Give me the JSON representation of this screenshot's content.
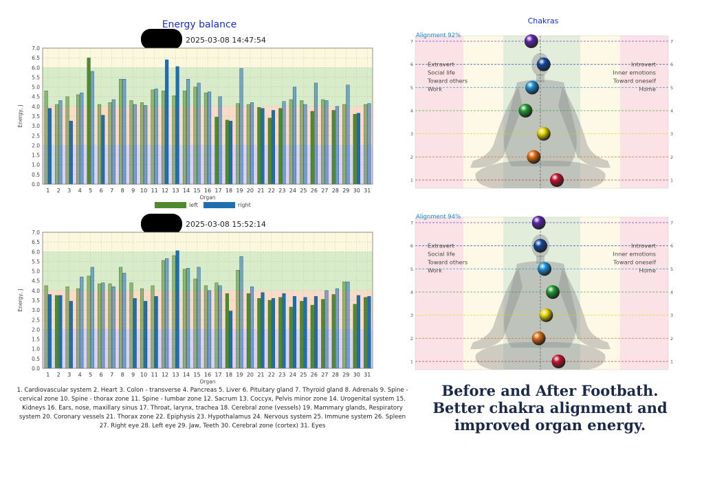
{
  "energy_title": "Energy balance",
  "timestamps": [
    "2025-03-08 14:47:54",
    "2025-03-08 15:52:14"
  ],
  "legend": {
    "left": "left",
    "right": "right",
    "left_color": "#4f8a2e",
    "right_color": "#1f6fb0"
  },
  "chakras_title": "Chakras",
  "chakra_labels_left": [
    "Extravert",
    "Social life",
    "Toward others",
    "Work"
  ],
  "chakra_labels_right": [
    "Introvert",
    "Inner emotions",
    "Toward oneself",
    "Home"
  ],
  "organ_list": "1. Cardiovascular system 2. Heart 3. Colon - transverse 4. Pancreas 5. Liver 6. Pituitary gland 7. Thyroid gland 8. Adrenals 9. Spine - cervical zone 10. Spine - thorax zone 11. Spine - lumbar zone 12. Sacrum 13. Coccyx, Pelvis minor zone 14. Urogenital system 15. Kidneys 16. Ears, nose, maxillary sinus 17. Throat, larynx, trachea 18. Cerebral zone (vessels) 19. Mammary glands, Respiratory system 20. Coronary vessels 21. Thorax zone 22. Epiphysis 23. Hypothalamus 24. Nervous system 25. Immune system 26. Spleen 27. Right eye 28. Left eye 29. Jaw, Teeth 30. Cerebral zone (cortex) 31. Eyes",
  "caption": [
    "Before and After Footbath.",
    "Better chakra alignment and",
    "improved organ energy."
  ],
  "chakra_colors": [
    "#c8102e",
    "#e06a10",
    "#e8d400",
    "#1e9a2e",
    "#1b8fd6",
    "#1046a0",
    "#5a23b0"
  ],
  "chart_data": [
    {
      "type": "bar",
      "timestamp": "2025-03-08 14:47:54",
      "xlabel": "Organ",
      "ylabel": "Energy, J",
      "ylim": [
        0,
        7
      ],
      "yticks": [
        "0.0",
        "0.5",
        "1.0",
        "1.5",
        "2.0",
        "2.5",
        "3.0",
        "3.5",
        "4.0",
        "4.5",
        "5.0",
        "5.5",
        "6.0",
        "6.5",
        "7.0"
      ],
      "categories": [
        "1",
        "2",
        "3",
        "4",
        "5",
        "6",
        "7",
        "8",
        "9",
        "10",
        "11",
        "12",
        "13",
        "14",
        "15",
        "16",
        "17",
        "18",
        "19",
        "20",
        "21",
        "22",
        "23",
        "24",
        "25",
        "26",
        "27",
        "28",
        "29",
        "30",
        "31"
      ],
      "series": [
        {
          "name": "left",
          "values": [
            4.8,
            4.1,
            4.5,
            4.6,
            6.5,
            4.1,
            4.2,
            5.4,
            4.3,
            4.2,
            4.85,
            4.8,
            4.55,
            4.8,
            5.0,
            4.7,
            3.45,
            3.3,
            4.15,
            4.1,
            3.95,
            3.4,
            3.9,
            4.35,
            4.3,
            3.75,
            4.35,
            3.8,
            4.1,
            3.6,
            4.1
          ]
        },
        {
          "name": "right",
          "values": [
            3.9,
            4.3,
            3.25,
            4.7,
            5.8,
            3.55,
            4.35,
            5.4,
            4.1,
            4.05,
            4.9,
            6.4,
            6.05,
            5.4,
            5.2,
            4.75,
            4.5,
            3.25,
            5.95,
            4.2,
            3.9,
            3.8,
            4.25,
            5.0,
            4.1,
            5.2,
            4.3,
            4.0,
            5.1,
            3.65,
            4.15
          ]
        }
      ]
    },
    {
      "type": "bar",
      "timestamp": "2025-03-08 15:52:14",
      "xlabel": "Organ",
      "ylabel": "Energy, J",
      "ylim": [
        0,
        7
      ],
      "yticks": [
        "0.0",
        "0.5",
        "1.0",
        "1.5",
        "2.0",
        "2.5",
        "3.0",
        "3.5",
        "4.0",
        "4.5",
        "5.0",
        "5.5",
        "6.0",
        "6.5",
        "7.0"
      ],
      "categories": [
        "1",
        "2",
        "3",
        "4",
        "5",
        "6",
        "7",
        "8",
        "9",
        "10",
        "11",
        "12",
        "13",
        "14",
        "15",
        "16",
        "17",
        "18",
        "19",
        "20",
        "21",
        "22",
        "23",
        "24",
        "25",
        "26",
        "27",
        "28",
        "29",
        "30",
        "31"
      ],
      "series": [
        {
          "name": "left",
          "values": [
            4.25,
            3.75,
            4.2,
            4.1,
            4.75,
            4.35,
            4.35,
            5.2,
            4.4,
            4.1,
            4.25,
            5.55,
            5.8,
            5.1,
            4.6,
            4.25,
            4.4,
            3.85,
            5.05,
            3.85,
            3.6,
            3.5,
            3.65,
            3.15,
            3.45,
            3.25,
            3.55,
            3.8,
            4.45,
            3.3,
            3.65
          ]
        },
        {
          "name": "right",
          "values": [
            3.8,
            3.75,
            3.45,
            4.7,
            5.2,
            4.4,
            4.2,
            4.9,
            3.6,
            3.45,
            3.7,
            5.65,
            6.05,
            5.15,
            5.2,
            4.0,
            4.25,
            2.95,
            5.75,
            4.2,
            3.9,
            3.6,
            3.85,
            3.7,
            3.65,
            3.7,
            4.0,
            4.1,
            4.45,
            3.75,
            3.7
          ]
        }
      ]
    },
    {
      "type": "scatter",
      "title": "Alignment 92%",
      "yticks": [
        "1",
        "2",
        "3",
        "4",
        "5",
        "6",
        "7"
      ],
      "chakra_levels": [
        1,
        2,
        3,
        4,
        5,
        6,
        7
      ],
      "offsets": [
        1.0,
        -0.4,
        0.2,
        -0.9,
        -0.5,
        0.2,
        -0.55
      ]
    },
    {
      "type": "scatter",
      "title": "Alignment 94%",
      "yticks": [
        "1",
        "2",
        "3",
        "4",
        "5",
        "6",
        "7"
      ],
      "chakra_levels": [
        1,
        2,
        3,
        4,
        5,
        6,
        7
      ],
      "offsets": [
        1.1,
        -0.1,
        0.35,
        0.75,
        0.25,
        0.0,
        -0.1
      ]
    }
  ]
}
